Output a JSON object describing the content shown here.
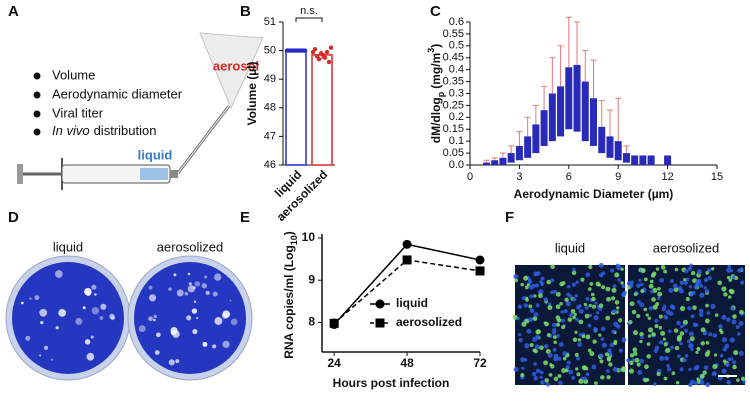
{
  "panel_labels": [
    "A",
    "B",
    "C",
    "D",
    "E",
    "F"
  ],
  "panel_a": {
    "bullets": [
      "Volume",
      "Aerodynamic diameter",
      "Viral titer",
      {
        "italic": "In vivo",
        "text": "distribution"
      }
    ],
    "aerosol_label": "aerosol",
    "liquid_label": "liquid"
  },
  "chart_data": [
    {
      "type": "bar",
      "ylabel": "Volume (µl)",
      "annotation": "n.s.",
      "categories": [
        "liquid",
        "aerosolized"
      ],
      "values": [
        50,
        49.85
      ],
      "errors": [
        0.02,
        0.15
      ],
      "colors": [
        "#2929c8",
        "#d42a2a"
      ],
      "points": [
        [
          50,
          50,
          50,
          50,
          50,
          50,
          50,
          50,
          50,
          50
        ],
        [
          49.95,
          50.05,
          49.8,
          49.7,
          49.9,
          49.85,
          49.75,
          49.95,
          49.6,
          50.1
        ]
      ],
      "ylim": [
        46,
        51
      ],
      "yticks": [
        46,
        47,
        48,
        49,
        50,
        51
      ]
    },
    {
      "type": "range",
      "xlabel": "Aerodynamic Diameter (µm)",
      "ylabel": {
        "main": "dM/dlog",
        "sub": "p",
        "unit": "(mg/m",
        "sup": "3",
        "end": ")"
      },
      "color": "#2a2ab8",
      "error_color": "#e07a7a",
      "x": [
        1,
        1.5,
        2,
        2.5,
        3,
        3.5,
        4,
        4.5,
        5,
        5.5,
        6,
        6.5,
        7,
        7.5,
        8,
        8.5,
        9,
        9.5,
        10,
        10.5,
        11,
        12
      ],
      "lows": [
        0,
        0,
        0,
        0.01,
        0.02,
        0.03,
        0.05,
        0.08,
        0.1,
        0.12,
        0.15,
        0.14,
        0.1,
        0.08,
        0.05,
        0.03,
        0.02,
        0.01,
        0,
        0,
        0,
        0
      ],
      "highs": [
        0.01,
        0.02,
        0.03,
        0.05,
        0.08,
        0.12,
        0.17,
        0.23,
        0.3,
        0.33,
        0.41,
        0.42,
        0.35,
        0.28,
        0.16,
        0.12,
        0.1,
        0.05,
        0.04,
        0.04,
        0.04,
        0.04
      ],
      "errors": [
        0.02,
        0.03,
        0.05,
        0.08,
        0.14,
        0.2,
        0.25,
        0.33,
        0.45,
        0.5,
        0.62,
        0.6,
        0.48,
        0.44,
        0.27,
        0.23,
        0.28,
        0.08,
        null,
        null,
        null,
        null
      ],
      "xlim": [
        0,
        15
      ],
      "xticks": [
        0,
        3,
        6,
        9,
        12,
        15
      ],
      "ylim": [
        0,
        0.6
      ],
      "yticks": [
        {
          "value": 0,
          "label": "0.0"
        },
        0.05,
        0.1,
        0.15,
        0.2,
        0.25,
        0.3,
        0.35,
        0.4,
        0.45,
        0.5,
        0.55,
        0.6
      ]
    },
    {
      "type": "line",
      "xlabel": "Hours post infection",
      "ylabel": {
        "main": "RNA copies/ml (Log",
        "sub": "10",
        "end": ")"
      },
      "x": [
        24,
        48,
        72
      ],
      "xlim": [
        20,
        72
      ],
      "xticks": [
        24,
        48,
        72
      ],
      "ylim": [
        7.3,
        10
      ],
      "yticks": [
        8,
        9,
        10
      ],
      "legend": "lower right",
      "series": [
        {
          "name": "liquid",
          "color": "#000000",
          "marker": "circle",
          "dash": false,
          "values": [
            7.95,
            9.85,
            9.48
          ]
        },
        {
          "name": "aerosolized",
          "color": "#000000",
          "marker": "square",
          "dash": true,
          "values": [
            7.98,
            9.48,
            9.22
          ],
          "errors": [
            0.12,
            0.04,
            0.03
          ],
          "error_color": "#d42a2a"
        }
      ]
    }
  ],
  "panel_d": {
    "labels": [
      "liquid",
      "aerosolized"
    ]
  },
  "panel_f": {
    "labels": [
      "liquid",
      "aerosolized"
    ]
  }
}
